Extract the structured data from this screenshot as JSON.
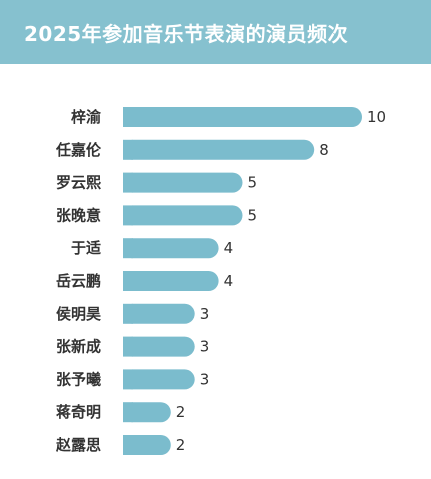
{
  "chart_data": {
    "type": "bar",
    "orientation": "horizontal",
    "title": "2025年参加音乐节表演的演员频次",
    "categories": [
      "梓渝",
      "任嘉伦",
      "罗云熙",
      "张晚意",
      "于适",
      "岳云鹏",
      "侯明昊",
      "张新成",
      "张予曦",
      "蒋奇明",
      "赵露思"
    ],
    "values": [
      10,
      8,
      5,
      5,
      4,
      4,
      3,
      3,
      3,
      2,
      2
    ],
    "xlim": [
      0,
      10
    ],
    "grid": false,
    "bar_color": "#7bbccd",
    "header_color": "#86c1cf"
  }
}
